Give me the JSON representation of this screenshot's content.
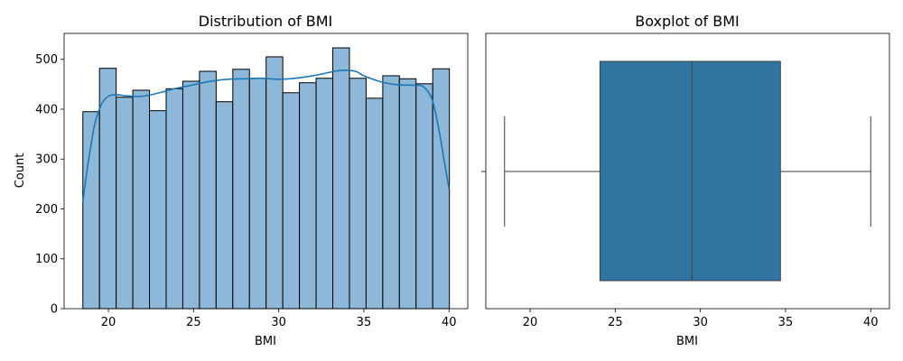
{
  "chart_data": [
    {
      "type": "bar",
      "subtype": "histogram_with_kde",
      "title": "Distribution of BMI",
      "xlabel": "BMI",
      "ylabel": "Count",
      "xlim": [
        17.4,
        41.1
      ],
      "ylim": [
        0,
        552
      ],
      "xticks": [
        20,
        25,
        30,
        35,
        40
      ],
      "yticks": [
        0,
        100,
        200,
        300,
        400,
        500
      ],
      "bin_start": 18.5,
      "bin_width": 0.9783,
      "values": [
        395,
        482,
        424,
        438,
        397,
        441,
        456,
        476,
        415,
        480,
        462,
        505,
        433,
        453,
        462,
        523,
        462,
        422,
        467,
        461,
        451,
        481
      ],
      "bar_color": "#8db8da",
      "edge_color": "#000000",
      "kde": {
        "x": [
          18.5,
          18.8,
          19.2,
          19.6,
          20.0,
          20.5,
          21.0,
          22.0,
          23.0,
          24.0,
          25.0,
          26.0,
          27.0,
          28.0,
          29.0,
          30.0,
          31.0,
          32.0,
          33.0,
          33.7,
          34.5,
          35.0,
          36.0,
          37.0,
          38.0,
          38.5,
          39.0,
          39.4,
          39.7,
          40.0
        ],
        "y": [
          214,
          290,
          370,
          410,
          426,
          429,
          427,
          426,
          433,
          442,
          449,
          456,
          460,
          461,
          462,
          460,
          462,
          467,
          474,
          478,
          476,
          467,
          455,
          449,
          448,
          445,
          420,
          360,
          300,
          240
        ],
        "color": "#1f77b4"
      }
    },
    {
      "type": "boxplot",
      "title": "Boxplot of BMI",
      "xlabel": "BMI",
      "xlim": [
        17.4,
        41.1
      ],
      "xticks": [
        20,
        25,
        30,
        35,
        40
      ],
      "whisker_low": 18.5,
      "q1": 24.1,
      "median": 29.5,
      "q3": 34.7,
      "whisker_high": 40.0,
      "box_color": "#3274a1",
      "line_color": "#3f3f3f"
    }
  ]
}
